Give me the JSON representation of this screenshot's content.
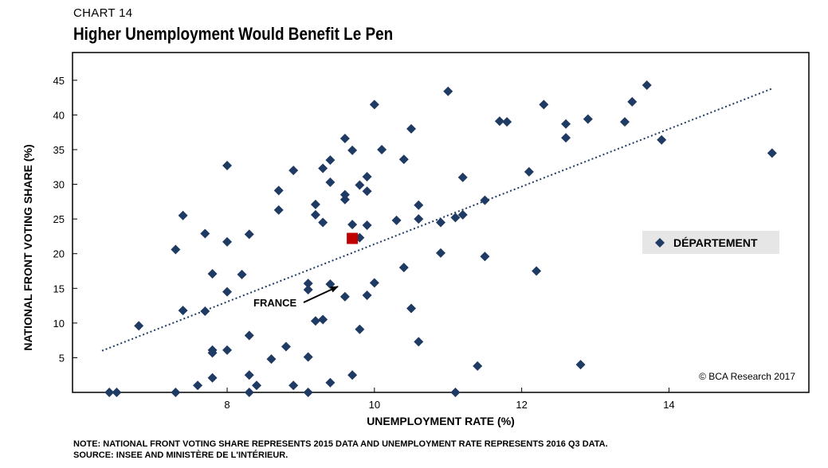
{
  "header": {
    "chart_number": "CHART 14",
    "title": "Higher Unemployment Would Benefit Le Pen"
  },
  "notes": {
    "note": "NOTE: NATIONAL FRONT VOTING SHARE REPRESENTS 2015 DATA AND UNEMPLOYMENT RATE  REPRESENTS 2016 Q3 DATA.",
    "source": "SOURCE: INSEE AND MINISTÈRE DE L'INTÉRIEUR."
  },
  "colors": {
    "point": "#1f3a63",
    "highlight": "#c00000",
    "trend": "#1f3a63",
    "legend_bg": "#e6e6e6"
  },
  "chart_data": {
    "type": "scatter",
    "title": "Higher Unemployment Would Benefit Le Pen",
    "xlabel": "UNEMPLOYMENT RATE (%)",
    "ylabel": "NATIONAL FRONT VOTING SHARE (%)",
    "xlim": [
      5.9,
      15.9
    ],
    "ylim": [
      0,
      49
    ],
    "xticks": [
      8,
      10,
      12,
      14
    ],
    "yticks": [
      5,
      10,
      15,
      20,
      25,
      30,
      35,
      40,
      45
    ],
    "legend": {
      "label": "DÉPARTEMENT",
      "position": "right"
    },
    "copyright": "© BCA Research 2017",
    "series": [
      {
        "name": "DÉPARTEMENT",
        "marker": "diamond",
        "points": [
          [
            6.4,
            0.0
          ],
          [
            6.5,
            0.0
          ],
          [
            6.8,
            9.6
          ],
          [
            7.3,
            20.6
          ],
          [
            7.3,
            0.0
          ],
          [
            7.4,
            25.5
          ],
          [
            7.4,
            11.8
          ],
          [
            7.6,
            1.0
          ],
          [
            7.7,
            22.9
          ],
          [
            7.7,
            11.7
          ],
          [
            7.8,
            17.1
          ],
          [
            7.8,
            6.1
          ],
          [
            7.8,
            5.7
          ],
          [
            7.8,
            2.1
          ],
          [
            8.0,
            32.7
          ],
          [
            8.0,
            21.7
          ],
          [
            8.0,
            14.5
          ],
          [
            8.0,
            6.1
          ],
          [
            8.2,
            17.0
          ],
          [
            8.3,
            22.8
          ],
          [
            8.3,
            8.2
          ],
          [
            8.3,
            2.5
          ],
          [
            8.3,
            0.0
          ],
          [
            8.4,
            1.0
          ],
          [
            8.6,
            4.8
          ],
          [
            8.7,
            29.1
          ],
          [
            8.7,
            26.3
          ],
          [
            8.8,
            6.6
          ],
          [
            8.9,
            32.0
          ],
          [
            8.9,
            1.0
          ],
          [
            9.1,
            15.7
          ],
          [
            9.1,
            14.8
          ],
          [
            9.1,
            5.1
          ],
          [
            9.1,
            0.0
          ],
          [
            9.2,
            27.1
          ],
          [
            9.2,
            25.6
          ],
          [
            9.2,
            10.3
          ],
          [
            9.3,
            32.3
          ],
          [
            9.3,
            24.5
          ],
          [
            9.3,
            10.5
          ],
          [
            9.4,
            33.5
          ],
          [
            9.4,
            30.3
          ],
          [
            9.4,
            15.6
          ],
          [
            9.4,
            1.4
          ],
          [
            9.6,
            36.6
          ],
          [
            9.6,
            28.5
          ],
          [
            9.6,
            27.8
          ],
          [
            9.6,
            13.8
          ],
          [
            9.7,
            34.9
          ],
          [
            9.7,
            24.2
          ],
          [
            9.7,
            2.5
          ],
          [
            9.8,
            29.9
          ],
          [
            9.8,
            22.3
          ],
          [
            9.8,
            9.1
          ],
          [
            9.9,
            31.1
          ],
          [
            9.9,
            29.0
          ],
          [
            9.9,
            24.1
          ],
          [
            9.9,
            14.0
          ],
          [
            10.0,
            41.5
          ],
          [
            10.0,
            15.8
          ],
          [
            10.1,
            35.0
          ],
          [
            10.3,
            24.8
          ],
          [
            10.4,
            33.6
          ],
          [
            10.4,
            18.0
          ],
          [
            10.5,
            38.0
          ],
          [
            10.5,
            12.1
          ],
          [
            10.6,
            27.0
          ],
          [
            10.6,
            25.0
          ],
          [
            10.6,
            7.3
          ],
          [
            10.9,
            24.5
          ],
          [
            10.9,
            20.1
          ],
          [
            11.0,
            43.4
          ],
          [
            11.1,
            25.2
          ],
          [
            11.1,
            0.0
          ],
          [
            11.2,
            31.0
          ],
          [
            11.2,
            25.6
          ],
          [
            11.4,
            3.8
          ],
          [
            11.5,
            27.7
          ],
          [
            11.5,
            19.6
          ],
          [
            11.7,
            39.1
          ],
          [
            11.8,
            39.0
          ],
          [
            12.1,
            31.8
          ],
          [
            12.2,
            17.5
          ],
          [
            12.3,
            41.5
          ],
          [
            12.6,
            38.7
          ],
          [
            12.6,
            36.7
          ],
          [
            12.8,
            4.0
          ],
          [
            12.9,
            39.4
          ],
          [
            13.4,
            39.0
          ],
          [
            13.5,
            41.9
          ],
          [
            13.7,
            44.3
          ],
          [
            13.9,
            36.4
          ],
          [
            15.4,
            34.5
          ]
        ]
      },
      {
        "name": "FRANCE",
        "marker": "square",
        "points": [
          [
            9.7,
            22.2
          ]
        ]
      }
    ],
    "trendline": {
      "style": "dotted",
      "from": [
        6.3,
        6.0
      ],
      "to": [
        15.4,
        43.8
      ]
    },
    "annotations": [
      {
        "text": "FRANCE",
        "target": [
          9.7,
          22.2
        ]
      }
    ]
  }
}
